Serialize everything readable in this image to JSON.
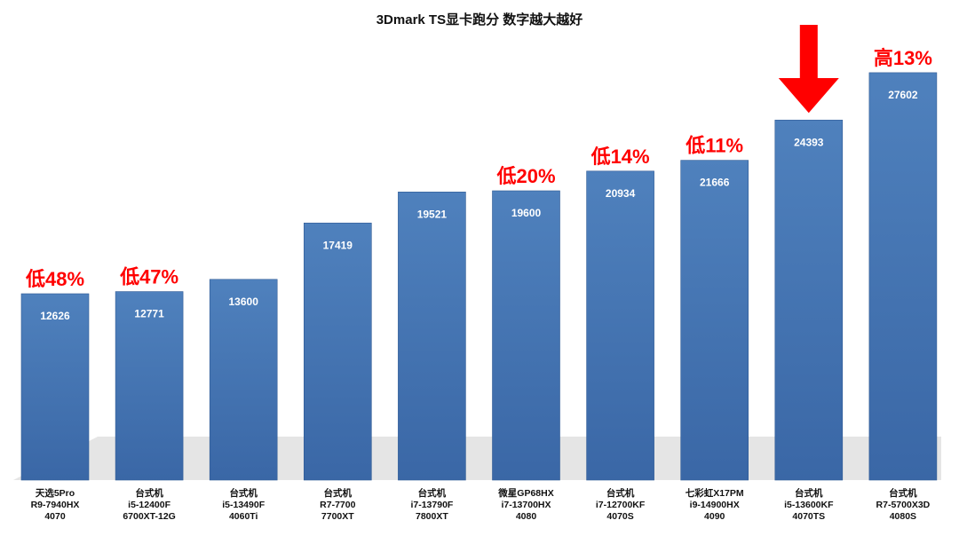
{
  "chart_data": {
    "type": "bar",
    "title": "3Dmark TS显卡跑分 数字越大越好",
    "categories": [
      [
        "天选5Pro",
        "R9-7940HX",
        "4070"
      ],
      [
        "台式机",
        "i5-12400F",
        "6700XT-12G"
      ],
      [
        "台式机",
        "i5-13490F",
        "4060Ti"
      ],
      [
        "台式机",
        "R7-7700",
        "7700XT"
      ],
      [
        "台式机",
        "i7-13790F",
        "7800XT"
      ],
      [
        "微星GP68HX",
        "i7-13700HX",
        "4080"
      ],
      [
        "台式机",
        "i7-12700KF",
        "4070S"
      ],
      [
        "七彩虹X17PM",
        "i9-14900HX",
        "4090"
      ],
      [
        "台式机",
        "i5-13600KF",
        "4070TS"
      ],
      [
        "台式机",
        "R7-5700X3D",
        "4080S"
      ]
    ],
    "values": [
      12626,
      12771,
      13600,
      17419,
      19521,
      19600,
      20934,
      21666,
      24393,
      27602
    ],
    "annotations": [
      "低48%",
      "低47%",
      "",
      "",
      "",
      "低20%",
      "低14%",
      "低11%",
      "",
      "高13%"
    ],
    "highlight_index": 8,
    "ylim": [
      0,
      30000
    ],
    "grid": false,
    "legend": "none",
    "xlabel": "",
    "ylabel": "",
    "colors": {
      "bar_top": "#4f81bd",
      "bar_bottom": "#3a67a6",
      "value_text": "#ffffff",
      "annotation": "#ff0000",
      "arrow": "#ff0000",
      "shadow": "#d0d0d0"
    }
  }
}
